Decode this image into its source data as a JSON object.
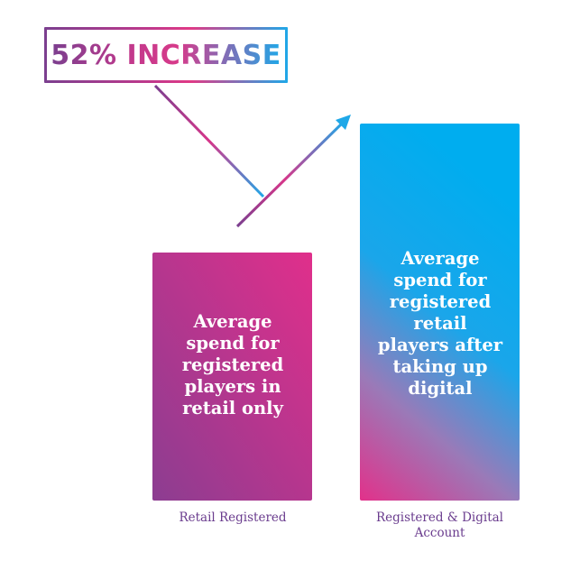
{
  "callout": {
    "text": "52% INCREASE"
  },
  "chart_data": {
    "type": "bar",
    "categories": [
      "Retail Registered",
      "Registered & Digital Account"
    ],
    "values": [
      100,
      152
    ],
    "bar_labels": [
      "Average spend for registered players in retail only",
      "Average spend for registered retail players after taking up digital"
    ],
    "increase_pct": 52,
    "ylim": [
      0,
      152
    ],
    "grid": false,
    "legend": "none"
  },
  "colors": {
    "bar1_start": "#d92f8c",
    "bar1_end": "#8a3d90",
    "bar2_top": "#00aeef",
    "bar2_bottom": "#e0308a",
    "label_color": "#6a3c8e"
  }
}
